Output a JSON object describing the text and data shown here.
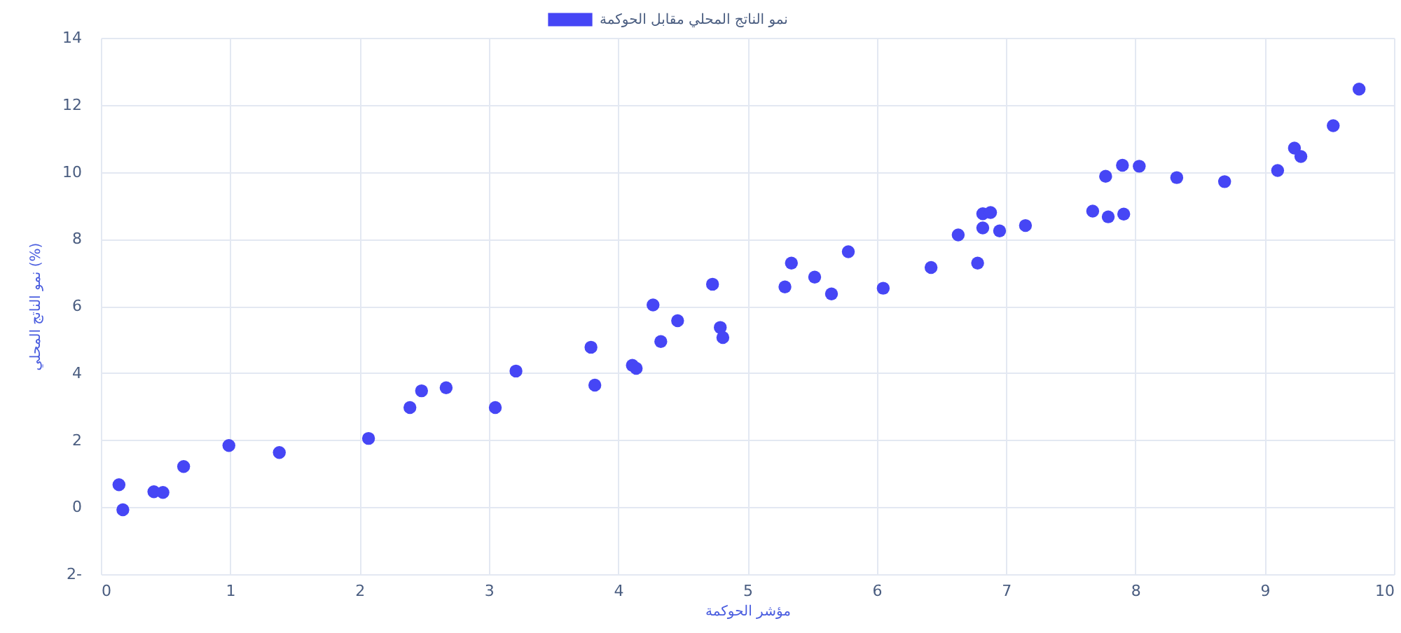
{
  "chart_data": {
    "type": "scatter",
    "xlabel": "مؤشر الحوكمة",
    "ylabel": "نمو الناتج المحلي (%)",
    "legend": "top",
    "grid": true,
    "marker": "circle",
    "xlim": [
      0,
      10
    ],
    "xticks": [
      0,
      1,
      2,
      3,
      4,
      5,
      6,
      7,
      8,
      9,
      10
    ],
    "ylim": [
      -2,
      14
    ],
    "yticks": [
      {
        "value": -2,
        "label": "2-"
      },
      0,
      2,
      4,
      6,
      8,
      10,
      12,
      14
    ],
    "series": [
      {
        "name": "نمو الناتج المحلي مقابل الحوكمة",
        "color": "#4646f5",
        "x": [
          0.14,
          0.17,
          0.41,
          0.48,
          0.64,
          0.99,
          1.38,
          2.07,
          2.39,
          2.48,
          2.67,
          3.05,
          3.21,
          3.79,
          3.82,
          4.11,
          4.14,
          4.27,
          4.33,
          4.46,
          4.73,
          4.79,
          4.81,
          5.29,
          5.34,
          5.52,
          5.65,
          5.78,
          6.05,
          6.42,
          6.63,
          6.78,
          6.82,
          6.88,
          6.82,
          6.95,
          7.15,
          7.67,
          7.79,
          7.91,
          7.77,
          7.9,
          8.03,
          8.32,
          8.69,
          9.1,
          9.23,
          9.28,
          9.53,
          9.73
        ],
        "values": [
          0.67,
          -0.08,
          0.46,
          0.44,
          1.21,
          1.84,
          1.63,
          2.05,
          2.97,
          3.47,
          3.56,
          2.97,
          4.06,
          4.77,
          3.64,
          4.23,
          4.14,
          6.03,
          4.94,
          5.56,
          6.65,
          5.36,
          5.06,
          6.57,
          7.28,
          6.86,
          6.36,
          7.62,
          6.53,
          7.15,
          8.12,
          7.28,
          8.75,
          8.79,
          8.33,
          8.24,
          8.4,
          8.83,
          8.66,
          8.74,
          9.87,
          10.2,
          10.17,
          9.83,
          9.71,
          10.04,
          10.71,
          10.46,
          11.38,
          12.47
        ]
      }
    ]
  }
}
